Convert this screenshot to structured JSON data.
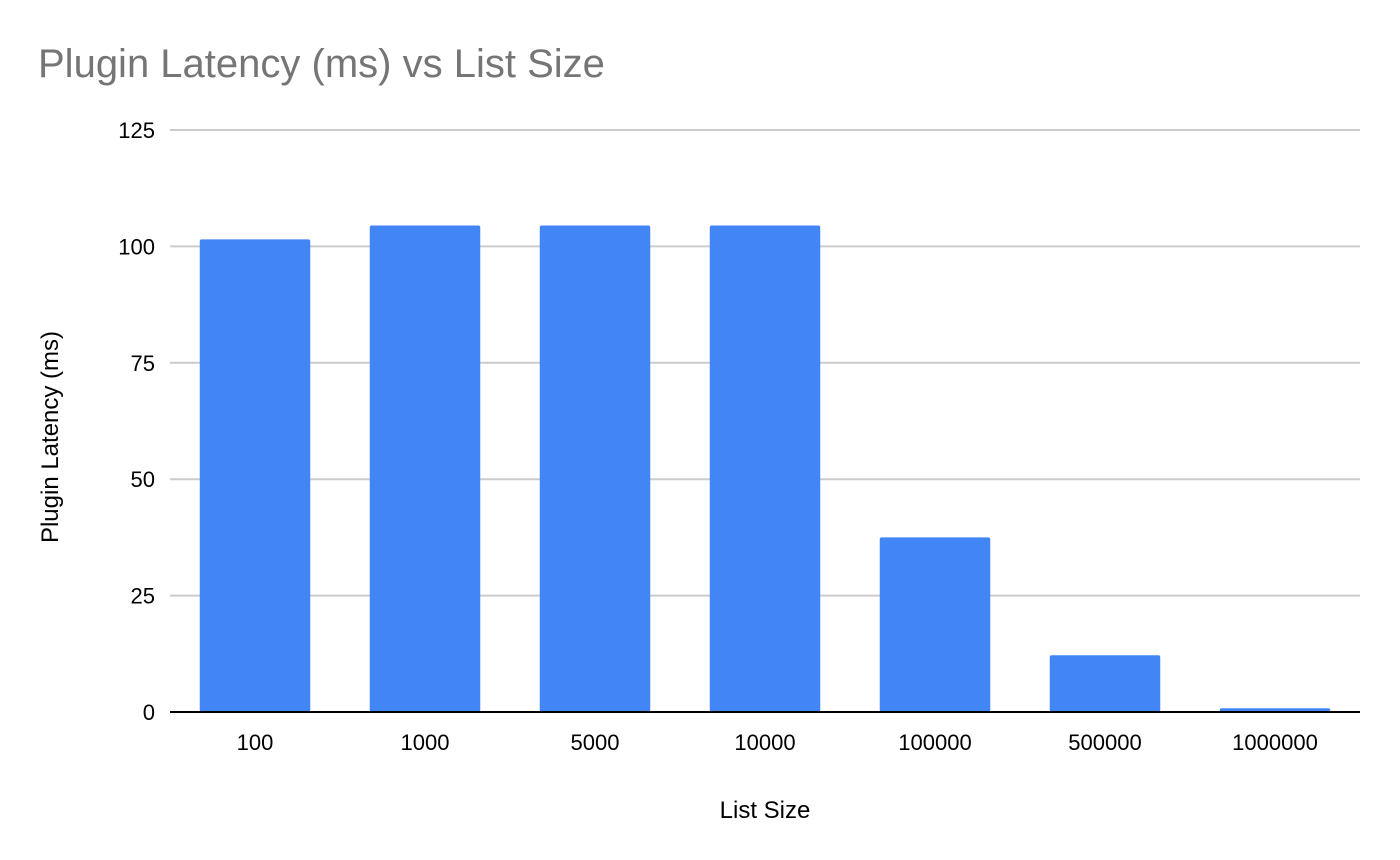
{
  "chart_data": {
    "type": "bar",
    "title": "Plugin Latency (ms) vs List Size",
    "xlabel": "List Size",
    "ylabel": "Plugin Latency (ms)",
    "categories": [
      "100",
      "1000",
      "5000",
      "10000",
      "100000",
      "500000",
      "1000000"
    ],
    "values": [
      101.5,
      104.5,
      104.5,
      104.5,
      37.5,
      12.2,
      0.8
    ],
    "ylim": [
      0,
      125
    ],
    "yticks": [
      "0",
      "25",
      "50",
      "75",
      "100",
      "125"
    ],
    "grid": true,
    "legend": "none",
    "bar_color": "#4285F4",
    "gridline_color": "#CCCCCC",
    "axis_color": "#000000",
    "title_color": "#757575"
  }
}
